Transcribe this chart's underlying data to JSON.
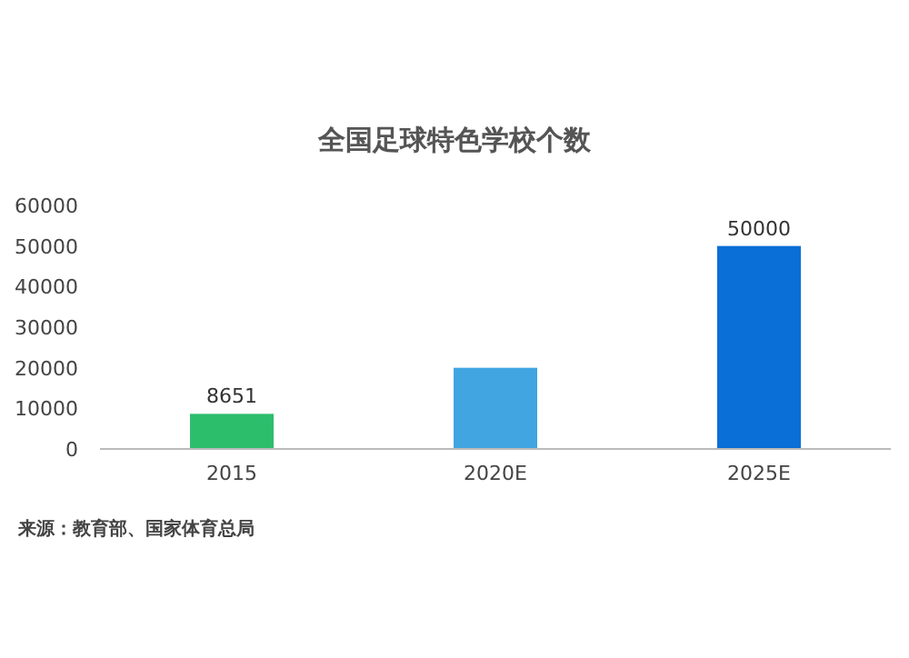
{
  "chart_data": {
    "type": "bar",
    "title": "全国足球特色学校个数",
    "categories": [
      "2015",
      "2020E",
      "2025E"
    ],
    "values": [
      8651,
      20000,
      50000
    ],
    "colors": [
      "#2dbe6c",
      "#41a5e1",
      "#0a6fd6"
    ],
    "value_labels": [
      "8651",
      null,
      "50000"
    ],
    "ylim": [
      0,
      60000
    ],
    "yticks": [
      0,
      10000,
      20000,
      30000,
      40000,
      50000,
      60000
    ],
    "annotations": [
      "来源：教育部、国家体育总局"
    ]
  }
}
